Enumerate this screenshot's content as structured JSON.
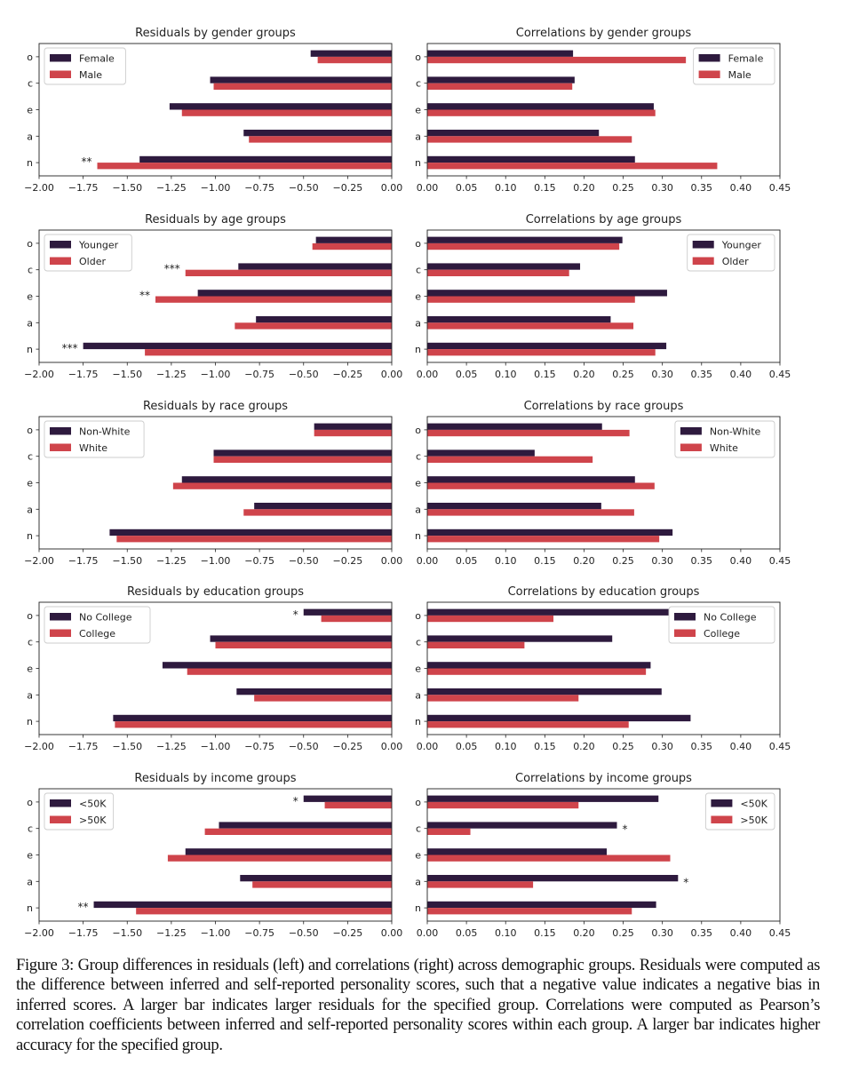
{
  "colors": {
    "series1": "#2e1a3e",
    "series2": "#cf444b",
    "axis": "#222222"
  },
  "chart_data": [
    {
      "type": "bar",
      "orientation": "horizontal",
      "side": "left",
      "title": "Residuals by gender groups",
      "categories": [
        "o",
        "c",
        "e",
        "a",
        "n"
      ],
      "xlim": [
        -2.0,
        0.0
      ],
      "xticks": [
        "−2.00",
        "−1.75",
        "−1.50",
        "−1.25",
        "−1.00",
        "−0.75",
        "−0.50",
        "−0.25",
        "0.00"
      ],
      "legend": "top-left",
      "series": [
        {
          "name": "Female",
          "values": [
            -0.46,
            -1.03,
            -1.26,
            -0.84,
            -1.43
          ]
        },
        {
          "name": "Male",
          "values": [
            -0.42,
            -1.01,
            -1.19,
            -0.81,
            -1.67
          ]
        }
      ],
      "annotations": [
        {
          "category": "n",
          "text": "**"
        }
      ]
    },
    {
      "type": "bar",
      "orientation": "horizontal",
      "side": "right",
      "title": "Correlations by gender groups",
      "categories": [
        "o",
        "c",
        "e",
        "a",
        "n"
      ],
      "xlim": [
        0.0,
        0.45
      ],
      "xticks": [
        "0.00",
        "0.05",
        "0.10",
        "0.15",
        "0.20",
        "0.25",
        "0.30",
        "0.35",
        "0.40",
        "0.45"
      ],
      "legend": "top-right",
      "series": [
        {
          "name": "Female",
          "values": [
            0.186,
            0.188,
            0.289,
            0.219,
            0.265
          ]
        },
        {
          "name": "Male",
          "values": [
            0.33,
            0.185,
            0.291,
            0.261,
            0.37
          ]
        }
      ],
      "annotations": []
    },
    {
      "type": "bar",
      "orientation": "horizontal",
      "side": "left",
      "title": "Residuals by age groups",
      "categories": [
        "o",
        "c",
        "e",
        "a",
        "n"
      ],
      "xlim": [
        -2.0,
        0.0
      ],
      "xticks": [
        "−2.00",
        "−1.75",
        "−1.50",
        "−1.25",
        "−1.00",
        "−0.75",
        "−0.50",
        "−0.25",
        "0.00"
      ],
      "legend": "top-left",
      "series": [
        {
          "name": "Younger",
          "values": [
            -0.43,
            -0.87,
            -1.1,
            -0.77,
            -1.75
          ]
        },
        {
          "name": "Older",
          "values": [
            -0.45,
            -1.17,
            -1.34,
            -0.89,
            -1.4
          ]
        }
      ],
      "annotations": [
        {
          "category": "c",
          "text": "***"
        },
        {
          "category": "e",
          "text": "**"
        },
        {
          "category": "n",
          "text": "***"
        }
      ]
    },
    {
      "type": "bar",
      "orientation": "horizontal",
      "side": "right",
      "title": "Correlations by age groups",
      "categories": [
        "o",
        "c",
        "e",
        "a",
        "n"
      ],
      "xlim": [
        0.0,
        0.45
      ],
      "xticks": [
        "0.00",
        "0.05",
        "0.10",
        "0.15",
        "0.20",
        "0.25",
        "0.30",
        "0.35",
        "0.40",
        "0.45"
      ],
      "legend": "top-right",
      "series": [
        {
          "name": "Younger",
          "values": [
            0.249,
            0.195,
            0.306,
            0.234,
            0.305
          ]
        },
        {
          "name": "Older",
          "values": [
            0.245,
            0.181,
            0.265,
            0.263,
            0.291
          ]
        }
      ],
      "annotations": []
    },
    {
      "type": "bar",
      "orientation": "horizontal",
      "side": "left",
      "title": "Residuals by race groups",
      "categories": [
        "o",
        "c",
        "e",
        "a",
        "n"
      ],
      "xlim": [
        -2.0,
        0.0
      ],
      "xticks": [
        "−2.00",
        "−1.75",
        "−1.50",
        "−1.25",
        "−1.00",
        "−0.75",
        "−0.50",
        "−0.25",
        "0.00"
      ],
      "legend": "top-left",
      "series": [
        {
          "name": "Non-White",
          "values": [
            -0.44,
            -1.01,
            -1.19,
            -0.78,
            -1.6
          ]
        },
        {
          "name": "White",
          "values": [
            -0.44,
            -1.01,
            -1.24,
            -0.84,
            -1.56
          ]
        }
      ],
      "annotations": []
    },
    {
      "type": "bar",
      "orientation": "horizontal",
      "side": "right",
      "title": "Correlations by race groups",
      "categories": [
        "o",
        "c",
        "e",
        "a",
        "n"
      ],
      "xlim": [
        0.0,
        0.45
      ],
      "xticks": [
        "0.00",
        "0.05",
        "0.10",
        "0.15",
        "0.20",
        "0.25",
        "0.30",
        "0.35",
        "0.40",
        "0.45"
      ],
      "legend": "top-right",
      "series": [
        {
          "name": "Non-White",
          "values": [
            0.223,
            0.137,
            0.265,
            0.222,
            0.313
          ]
        },
        {
          "name": "White",
          "values": [
            0.258,
            0.211,
            0.29,
            0.264,
            0.296
          ]
        }
      ],
      "annotations": []
    },
    {
      "type": "bar",
      "orientation": "horizontal",
      "side": "left",
      "title": "Residuals by education groups",
      "categories": [
        "o",
        "c",
        "e",
        "a",
        "n"
      ],
      "xlim": [
        -2.0,
        0.0
      ],
      "xticks": [
        "−2.00",
        "−1.75",
        "−1.50",
        "−1.25",
        "−1.00",
        "−0.75",
        "−0.50",
        "−0.25",
        "0.00"
      ],
      "legend": "top-left",
      "series": [
        {
          "name": "No College",
          "values": [
            -0.5,
            -1.03,
            -1.3,
            -0.88,
            -1.58
          ]
        },
        {
          "name": "College",
          "values": [
            -0.4,
            -1.0,
            -1.16,
            -0.78,
            -1.57
          ]
        }
      ],
      "annotations": [
        {
          "category": "o",
          "text": "*"
        }
      ]
    },
    {
      "type": "bar",
      "orientation": "horizontal",
      "side": "right",
      "title": "Correlations by education groups",
      "categories": [
        "o",
        "c",
        "e",
        "a",
        "n"
      ],
      "xlim": [
        0.0,
        0.45
      ],
      "xticks": [
        "0.00",
        "0.05",
        "0.10",
        "0.15",
        "0.20",
        "0.25",
        "0.30",
        "0.35",
        "0.40",
        "0.45"
      ],
      "legend": "top-right",
      "series": [
        {
          "name": "No College",
          "values": [
            0.314,
            0.236,
            0.285,
            0.299,
            0.336
          ]
        },
        {
          "name": "College",
          "values": [
            0.161,
            0.124,
            0.279,
            0.193,
            0.257
          ]
        }
      ],
      "annotations": []
    },
    {
      "type": "bar",
      "orientation": "horizontal",
      "side": "left",
      "title": "Residuals by income groups",
      "categories": [
        "o",
        "c",
        "e",
        "a",
        "n"
      ],
      "xlim": [
        -2.0,
        0.0
      ],
      "xticks": [
        "−2.00",
        "−1.75",
        "−1.50",
        "−1.25",
        "−1.00",
        "−0.75",
        "−0.50",
        "−0.25",
        "0.00"
      ],
      "legend": "top-left",
      "series": [
        {
          "name": "<50K",
          "values": [
            -0.5,
            -0.98,
            -1.17,
            -0.86,
            -1.69
          ]
        },
        {
          "name": ">50K",
          "values": [
            -0.38,
            -1.06,
            -1.27,
            -0.79,
            -1.45
          ]
        }
      ],
      "annotations": [
        {
          "category": "o",
          "text": "*"
        },
        {
          "category": "n",
          "text": "**"
        }
      ]
    },
    {
      "type": "bar",
      "orientation": "horizontal",
      "side": "right",
      "title": "Correlations by income groups",
      "categories": [
        "o",
        "c",
        "e",
        "a",
        "n"
      ],
      "xlim": [
        0.0,
        0.45
      ],
      "xticks": [
        "0.00",
        "0.05",
        "0.10",
        "0.15",
        "0.20",
        "0.25",
        "0.30",
        "0.35",
        "0.40",
        "0.45"
      ],
      "legend": "top-right",
      "series": [
        {
          "name": "<50K",
          "values": [
            0.295,
            0.242,
            0.229,
            0.32,
            0.292
          ]
        },
        {
          "name": ">50K",
          "values": [
            0.193,
            0.055,
            0.31,
            0.135,
            0.261
          ]
        }
      ],
      "annotations": [
        {
          "category": "c",
          "text": "*"
        },
        {
          "category": "a",
          "text": "*"
        }
      ]
    }
  ],
  "caption": "Figure 3: Group differences in residuals (left) and correlations (right) across demographic groups. Residuals were computed as the difference between inferred and self-reported personality scores, such that a negative value indicates a negative bias in inferred scores. A larger bar indicates larger residuals for the specified group. Correlations were computed as Pearson’s correlation coefficients between inferred and self-reported personality scores within each group. A larger bar indicates higher accuracy for the specified group."
}
